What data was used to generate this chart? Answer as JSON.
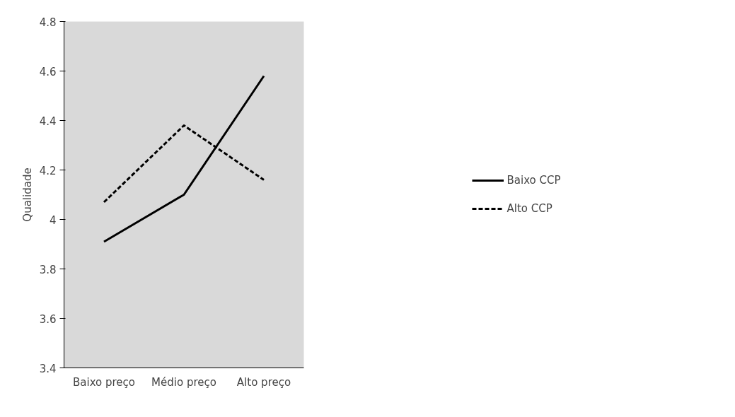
{
  "chart_data": {
    "type": "line",
    "ylabel": "Qualidade",
    "categories": [
      "Baixo preço",
      "Médio preço",
      "Alto preço"
    ],
    "series": [
      {
        "name": "Baixo CCP",
        "color": "#000000",
        "values": [
          3.91,
          4.1,
          4.58
        ],
        "line_style": "solid"
      },
      {
        "name": "Alto CCP",
        "color": "#000000",
        "values": [
          4.07,
          4.38,
          4.16
        ],
        "line_style": "dashed"
      }
    ],
    "ylim": [
      3.4,
      4.8
    ],
    "yticks": [
      3.4,
      3.6,
      3.8,
      4,
      4.2,
      4.4,
      4.6,
      4.8
    ],
    "grid": false,
    "legend": "right",
    "marker": "none"
  }
}
